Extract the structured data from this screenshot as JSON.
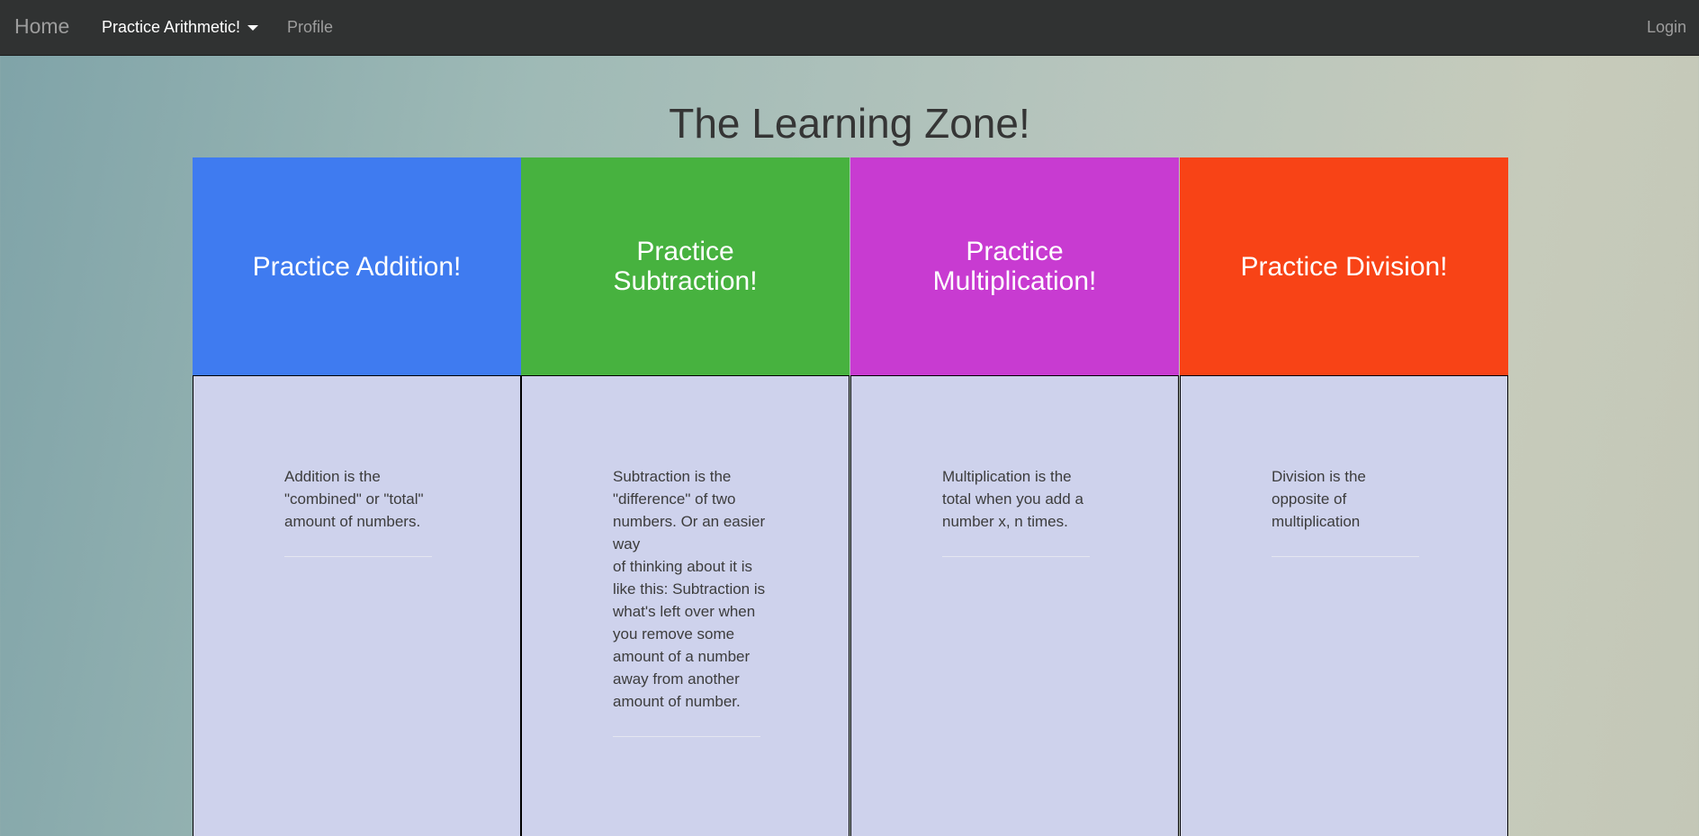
{
  "nav": {
    "brand": "Home",
    "dropdown_label": "Practice Arithmetic!",
    "profile": "Profile",
    "login": "Login"
  },
  "title": "The Learning Zone!",
  "cards": [
    {
      "heading": "Practice Addition!",
      "color": "#3f7bf0",
      "description": "Addition is the \"combined\" or \"total\" amount of numbers."
    },
    {
      "heading": "Practice Subtraction!",
      "color": "#47b23f",
      "description": "Subtraction is the \"difference\" of two numbers. Or an easier way\nof thinking about it is like this: Subtraction is what's left over when you remove some amount of a number away from another amount of number."
    },
    {
      "heading": "Practice Multiplication!",
      "color": "#c83bd1",
      "description": "Multiplication is the total when you add a number x, n times."
    },
    {
      "heading": "Practice Division!",
      "color": "#f84316",
      "description": "Division is the opposite of multiplication"
    }
  ]
}
